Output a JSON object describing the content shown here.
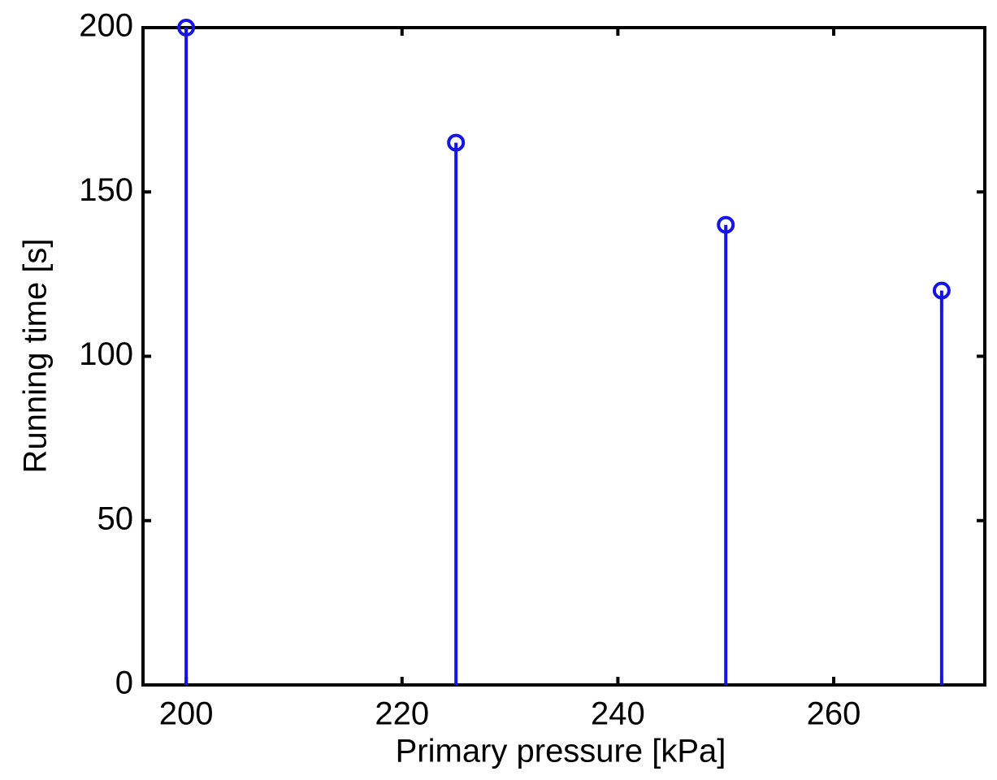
{
  "chart_data": {
    "type": "stem",
    "xlabel": "Primary pressure [kPa]",
    "ylabel": "Running time [s]",
    "x": [
      200,
      225,
      250,
      270
    ],
    "values": [
      200,
      165,
      140,
      120
    ],
    "color": "#1414e6",
    "xlim": [
      196,
      274
    ],
    "ylim": [
      0,
      200
    ],
    "xticks": [
      200,
      220,
      240,
      260
    ],
    "yticks": [
      0,
      50,
      100,
      150,
      200
    ]
  }
}
